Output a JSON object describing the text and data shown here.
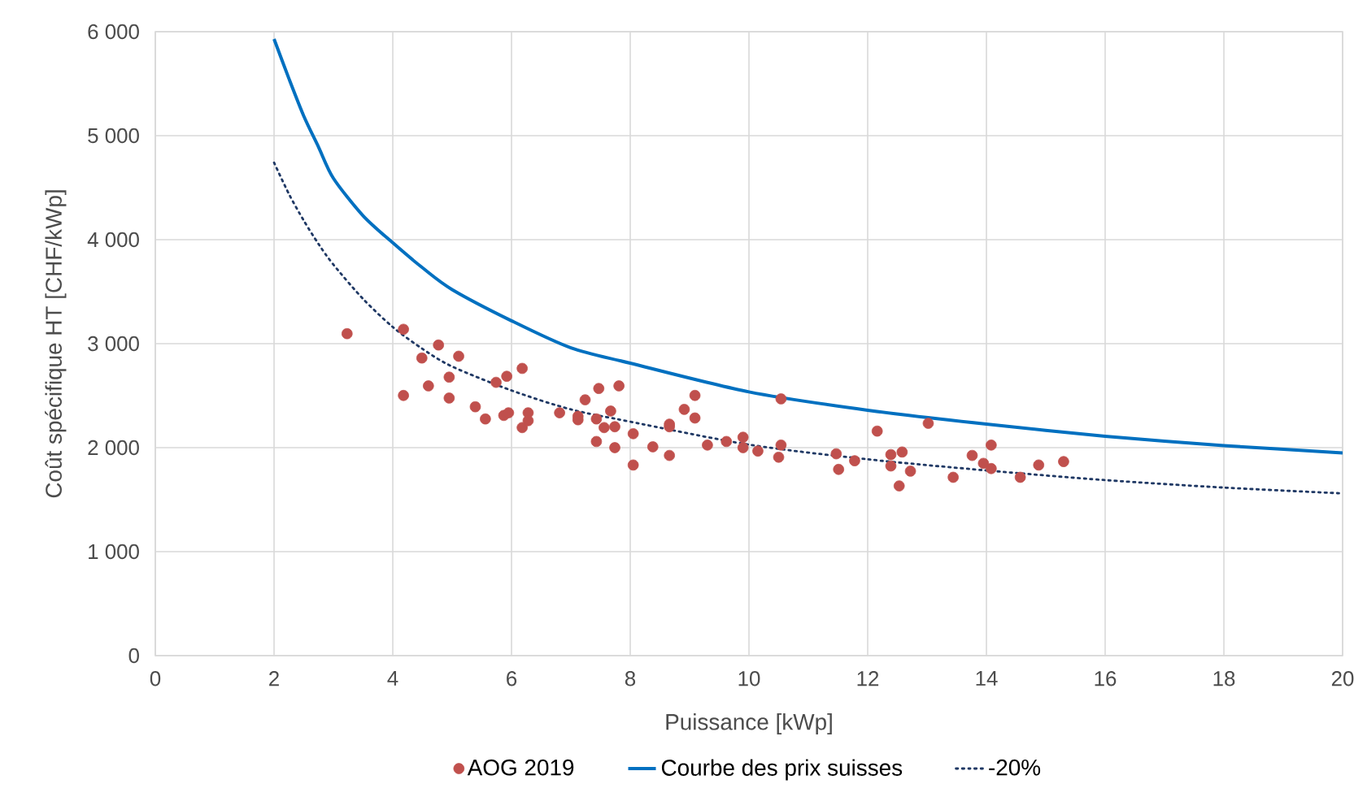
{
  "chart_data": {
    "type": "scatter",
    "xlabel": "Puissance [kWp]",
    "ylabel": "Coût spécifique HT [CHF/kWp]",
    "xlim": [
      0,
      20
    ],
    "ylim": [
      0,
      6000
    ],
    "xticks": [
      0,
      2,
      4,
      6,
      8,
      10,
      12,
      14,
      16,
      18,
      20
    ],
    "yticks": [
      0,
      {
        "value": 1000,
        "label": "1 000"
      },
      {
        "value": 2000,
        "label": "2 000"
      },
      {
        "value": 3000,
        "label": "3 000"
      },
      {
        "value": 4000,
        "label": "4 000"
      },
      {
        "value": 5000,
        "label": "5 000"
      },
      {
        "value": 6000,
        "label": "6 000"
      }
    ],
    "grid": true,
    "legend": "bottom",
    "series": [
      {
        "name": "AOG 2019",
        "marker": "circle",
        "color": "#c0504d",
        "x": [
          3.23,
          4.18,
          4.18,
          4.49,
          4.6,
          4.77,
          4.95,
          4.95,
          5.11,
          5.39,
          5.56,
          5.74,
          5.87,
          5.92,
          5.95,
          6.18,
          6.18,
          6.28,
          6.28,
          6.81,
          7.12,
          7.12,
          7.24,
          7.43,
          7.43,
          7.47,
          7.56,
          7.67,
          7.74,
          7.74,
          7.81,
          8.05,
          8.05,
          8.38,
          8.66,
          8.66,
          8.66,
          8.91,
          9.09,
          9.09,
          9.3,
          9.62,
          9.9,
          9.9,
          10.15,
          10.5,
          10.54,
          10.54,
          11.47,
          11.51,
          11.78,
          12.16,
          12.39,
          12.39,
          12.53,
          12.58,
          12.72,
          13.02,
          13.44,
          13.76,
          13.95,
          14.08,
          14.08,
          14.57,
          14.88,
          15.3
        ],
        "values": [
          3096,
          3138,
          2502,
          2862,
          2594,
          2987,
          2678,
          2477,
          2879,
          2393,
          2276,
          2628,
          2310,
          2686,
          2335,
          2762,
          2193,
          2335,
          2259,
          2335,
          2301,
          2268,
          2460,
          2276,
          2059,
          2569,
          2193,
          2352,
          2201,
          2000,
          2594,
          2134,
          1833,
          2008,
          2226,
          2201,
          1925,
          2368,
          2502,
          2285,
          2025,
          2059,
          2100,
          2000,
          1967,
          1908,
          2469,
          2025,
          1941,
          1791,
          1874,
          2159,
          1933,
          1824,
          1632,
          1958,
          1774,
          2234,
          1715,
          1925,
          1849,
          2025,
          1799,
          1715,
          1833,
          1866
        ]
      },
      {
        "name": "Courbe des prix suisses",
        "type": "line",
        "line_style": "solid",
        "marker": "none",
        "color": "#0070c0",
        "x": [
          2,
          2.25,
          2.5,
          2.75,
          3,
          3.5,
          4,
          4.5,
          5,
          6,
          7,
          8,
          10,
          12,
          14,
          16,
          18,
          20
        ],
        "values": [
          5930,
          5550,
          5190,
          4890,
          4590,
          4230,
          3970,
          3730,
          3520,
          3220,
          2960,
          2812,
          2536,
          2360,
          2226,
          2110,
          2020,
          1950
        ]
      },
      {
        "name": "-20%",
        "type": "line",
        "line_style": "dotted",
        "marker": "none",
        "color": "#1f3864",
        "x": [
          2,
          2.25,
          2.5,
          2.75,
          3,
          3.5,
          4,
          4.5,
          5,
          6,
          7,
          8,
          10,
          12,
          14,
          16,
          18,
          20
        ],
        "values": [
          4741,
          4440,
          4184,
          3958,
          3760,
          3430,
          3160,
          2950,
          2780,
          2550,
          2368,
          2250,
          2029,
          1888,
          1781,
          1688,
          1616,
          1560
        ]
      }
    ]
  }
}
